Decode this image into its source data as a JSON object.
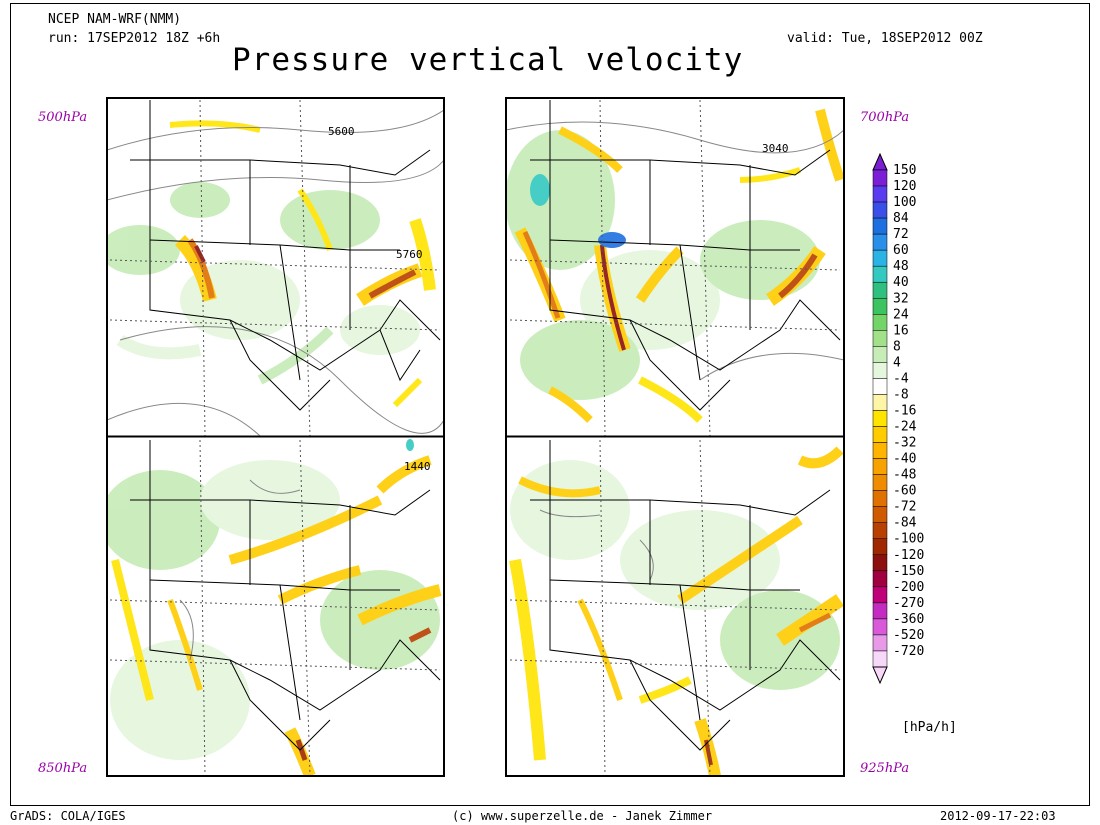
{
  "header": {
    "model": "NCEP NAM-WRF(NMM)",
    "run": "run: 17SEP2012 18Z +6h",
    "valid": "valid: Tue, 18SEP2012 00Z",
    "title": "Pressure vertical velocity"
  },
  "panels": [
    {
      "level": "500hPa",
      "contour_label": "5600",
      "contour_label2": "5760"
    },
    {
      "level": "700hPa",
      "contour_label": "3040"
    },
    {
      "level": "850hPa",
      "contour_label": "1440"
    },
    {
      "level": "925hPa"
    }
  ],
  "colorbar": {
    "unit": "[hPa/h]",
    "levels": [
      "150",
      "120",
      "100",
      "84",
      "72",
      "60",
      "48",
      "40",
      "32",
      "24",
      "16",
      "8",
      "4",
      "-4",
      "-8",
      "-16",
      "-24",
      "-32",
      "-40",
      "-48",
      "-60",
      "-72",
      "-84",
      "-100",
      "-120",
      "-150",
      "-200",
      "-270",
      "-360",
      "-520",
      "-720"
    ],
    "colors": [
      "#7a1fd6",
      "#5a3cf0",
      "#3a4ee8",
      "#1e6fe0",
      "#2a8fe8",
      "#2cb3e6",
      "#33c9c0",
      "#2fc080",
      "#3dc460",
      "#73d46a",
      "#a3e08a",
      "#c6ecb8",
      "#e4f6dc",
      "#ffffff",
      "#fff5a8",
      "#ffe400",
      "#ffcc00",
      "#ffb400",
      "#f8a200",
      "#f08c00",
      "#e07000",
      "#d05a00",
      "#b84000",
      "#a02800",
      "#8c1010",
      "#a00040",
      "#c00078",
      "#c22cc0",
      "#d85ad8",
      "#e89ae8",
      "#f8d8f8"
    ]
  },
  "footer": {
    "grads": "GrADS: COLA/IGES",
    "credit": "(c) www.superzelle.de - Janek Zimmer",
    "timestamp": "2012-09-17-22:03"
  }
}
